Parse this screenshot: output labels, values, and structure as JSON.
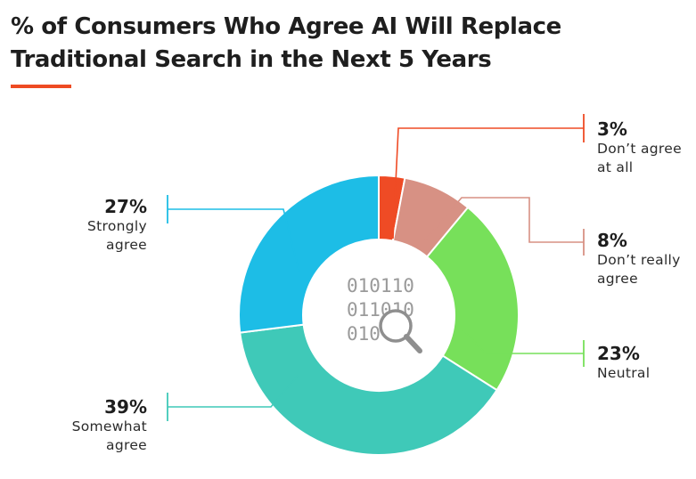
{
  "title": "% of Consumers Who Agree AI Will Replace Traditional Search in the Next 5 Years",
  "accent_color": "#ee4b22",
  "center_icon": "binary-magnifier-icon",
  "center_icon_text": [
    "010110",
    "011010",
    "010"
  ],
  "chart_data": {
    "type": "pie",
    "donut": true,
    "legend": "none",
    "categories": [
      "Don’t agree at all",
      "Don’t really agree",
      "Neutral",
      "Somewhat agree",
      "Strongly agree"
    ],
    "values": [
      3,
      8,
      23,
      39,
      27
    ],
    "labels": [
      "3%",
      "8%",
      "23%",
      "39%",
      "27%"
    ],
    "colors": [
      "#ef4b25",
      "#d79184",
      "#77e05a",
      "#3fc9b8",
      "#1dbde6"
    ]
  }
}
